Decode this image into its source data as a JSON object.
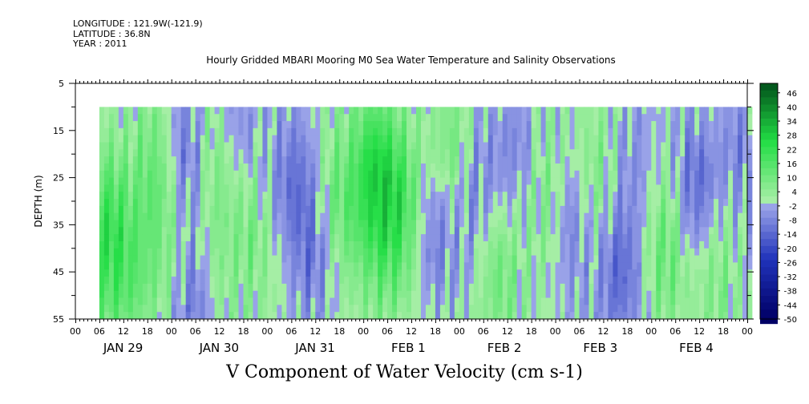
{
  "meta": {
    "longitude": "LONGITUDE : 121.9W(-121.9)",
    "latitude": "LATITUDE : 36.8N",
    "year": "YEAR : 2011"
  },
  "title": "Hourly Gridded MBARI Mooring M0 Sea Water Temperature and Salinity Observations",
  "bottom_title": "V Component of Water Velocity (cm s-1)",
  "chart_data": {
    "type": "heatmap",
    "title": "Hourly Gridded MBARI Mooring M0 Sea Water Temperature and Salinity Observations",
    "xlabel": "",
    "ylabel": "DEPTH (m)",
    "x_tick_labels": [
      "00",
      "06",
      "12",
      "18",
      "00",
      "06",
      "12",
      "18",
      "00",
      "06",
      "12",
      "18",
      "00",
      "06",
      "12",
      "18",
      "00",
      "06",
      "12",
      "18",
      "00",
      "06",
      "12",
      "18",
      "00",
      "06",
      "12",
      "18",
      "00"
    ],
    "x_day_labels": [
      "JAN 29",
      "JAN 30",
      "JAN 31",
      "FEB  1",
      "FEB  2",
      "FEB  3",
      "FEB  4"
    ],
    "xlim_hours": [
      0,
      168
    ],
    "data_start_hour": 6,
    "y_tick_labels": [
      "5",
      "15",
      "25",
      "35",
      "45",
      "55"
    ],
    "ylim": [
      55,
      5
    ],
    "data_depth_range": [
      10,
      55
    ],
    "colorbar": {
      "labels": [
        "46",
        "40",
        "34",
        "28",
        "22",
        "16",
        "10",
        "4",
        "-2",
        "-8",
        "-14",
        "-20",
        "-26",
        "-32",
        "-38",
        "-44",
        "-50"
      ],
      "range": [
        -50,
        50
      ],
      "step": 3
    },
    "fields": [
      {
        "hour": 8,
        "depth": 35,
        "value": 18
      },
      {
        "hour": 8,
        "depth": 52,
        "value": 6
      },
      {
        "hour": 15,
        "depth": 45,
        "value": 10
      },
      {
        "hour": 20,
        "depth": 22,
        "value": 12
      },
      {
        "hour": 24,
        "depth": 40,
        "value": 6
      },
      {
        "hour": 27,
        "depth": 20,
        "value": -12
      },
      {
        "hour": 30,
        "depth": 50,
        "value": -14
      },
      {
        "hour": 34,
        "depth": 45,
        "value": 8
      },
      {
        "hour": 36,
        "depth": 20,
        "value": 10
      },
      {
        "hour": 40,
        "depth": 15,
        "value": -10
      },
      {
        "hour": 45,
        "depth": 35,
        "value": 12
      },
      {
        "hour": 48,
        "depth": 30,
        "value": -6
      },
      {
        "hour": 55,
        "depth": 25,
        "value": -10
      },
      {
        "hour": 60,
        "depth": 40,
        "value": -12
      },
      {
        "hour": 65,
        "depth": 30,
        "value": 12
      },
      {
        "hour": 72,
        "depth": 35,
        "value": 6
      },
      {
        "hour": 75,
        "depth": 22,
        "value": 20
      },
      {
        "hour": 78,
        "depth": 40,
        "value": 10
      },
      {
        "hour": 82,
        "depth": 30,
        "value": 14
      },
      {
        "hour": 90,
        "depth": 35,
        "value": -12
      },
      {
        "hour": 94,
        "depth": 20,
        "value": 12
      },
      {
        "hour": 100,
        "depth": 28,
        "value": -10
      },
      {
        "hour": 106,
        "depth": 45,
        "value": 10
      },
      {
        "hour": 110,
        "depth": 20,
        "value": -8
      },
      {
        "hour": 118,
        "depth": 30,
        "value": 8
      },
      {
        "hour": 124,
        "depth": 35,
        "value": -10
      },
      {
        "hour": 130,
        "depth": 25,
        "value": 8
      },
      {
        "hour": 136,
        "depth": 45,
        "value": -14
      },
      {
        "hour": 140,
        "depth": 20,
        "value": -6
      },
      {
        "hour": 148,
        "depth": 40,
        "value": 12
      },
      {
        "hour": 155,
        "depth": 28,
        "value": -14
      },
      {
        "hour": 160,
        "depth": 45,
        "value": 8
      },
      {
        "hour": 166,
        "depth": 20,
        "value": -8
      }
    ]
  },
  "colors": {
    "negative_ramp": [
      "#aab1ee",
      "#2033bb",
      "#000066"
    ],
    "positive_ramp": [
      "#a5eea5",
      "#22dd44",
      "#004d1a"
    ]
  }
}
